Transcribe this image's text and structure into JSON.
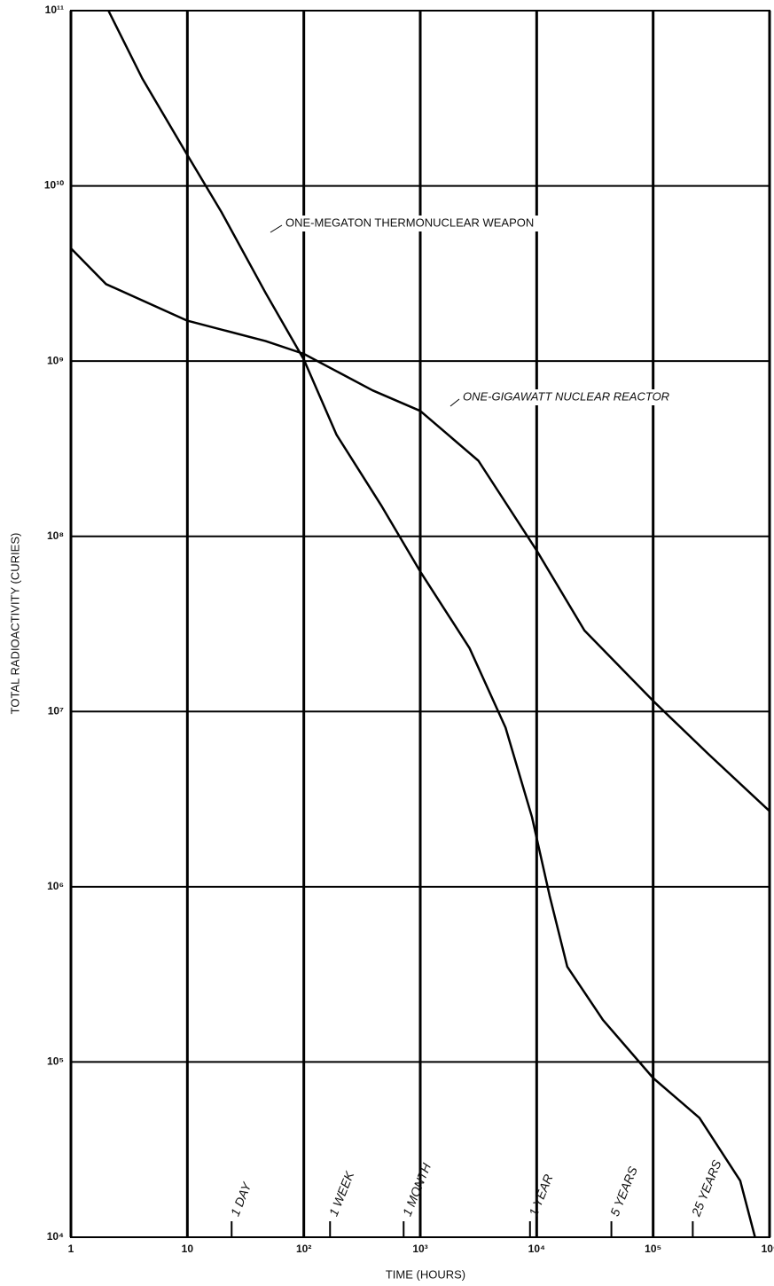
{
  "chart_data": {
    "type": "line",
    "x_label": "TIME (HOURS)",
    "y_label": "TOTAL RADIOACTIVITY (CURIES)",
    "xscale": "log",
    "yscale": "log",
    "grid": true,
    "xlim": [
      1,
      1000000
    ],
    "ylim": [
      10000,
      100000000000
    ],
    "xticks": [
      1,
      10,
      {
        "value": 100,
        "label": "10²"
      },
      {
        "value": 1000,
        "label": "10³"
      },
      {
        "value": 10000,
        "label": "10⁴"
      },
      {
        "value": 100000,
        "label": "10⁵"
      },
      {
        "value": 1000000,
        "label": "10⁶"
      }
    ],
    "yticks": [
      {
        "value": 10000,
        "label": "10⁴"
      },
      {
        "value": 100000,
        "label": "10⁵"
      },
      {
        "value": 1000000,
        "label": "10⁶"
      },
      {
        "value": 10000000,
        "label": "10⁷"
      },
      {
        "value": 100000000,
        "label": "10⁸"
      },
      {
        "value": 1000000000,
        "label": "10⁹"
      },
      {
        "value": 10000000000,
        "label": "10¹⁰"
      },
      {
        "value": 100000000000,
        "label": "10¹¹"
      }
    ],
    "time_markers": [
      {
        "label": "1 DAY",
        "x": 24
      },
      {
        "label": "1 WEEK",
        "x": 168
      },
      {
        "label": "1 MONTH",
        "x": 720
      },
      {
        "label": "1 YEAR",
        "x": 8760
      },
      {
        "label": "5 YEARS",
        "x": 43800
      },
      {
        "label": "25 YEARS",
        "x": 219000
      }
    ],
    "series": [
      {
        "name": "ONE-MEGATON THERMONUCLEAR WEAPON",
        "color": "#000000",
        "x": [
          2.1,
          4.1,
          10,
          19.6,
          47,
          100,
          191,
          460,
          1000,
          2650,
          5400,
          9100,
          12900,
          18300,
          37000,
          100000,
          250000,
          560000,
          750000
        ],
        "values": [
          100000000000,
          41000000000,
          15000000000,
          7100000000,
          2450000000,
          1020000000,
          380000000,
          151000000,
          63000000,
          23000000,
          8100000,
          2500000,
          890000,
          350000,
          174000,
          81000,
          48000,
          21000,
          10000
        ]
      },
      {
        "name": "ONE-GIGAWATT NUCLEAR REACTOR",
        "color": "#000000",
        "x": [
          1,
          2,
          10,
          47,
          100,
          390,
          1000,
          3160,
          10000,
          25700,
          100000,
          300000,
          1000000
        ],
        "values": [
          4400000000,
          2750000000,
          1700000000,
          1300000000,
          1100000000,
          680000000,
          520000000,
          270000000,
          83000000,
          29000000,
          11500000,
          5700000,
          2700000
        ]
      }
    ]
  }
}
